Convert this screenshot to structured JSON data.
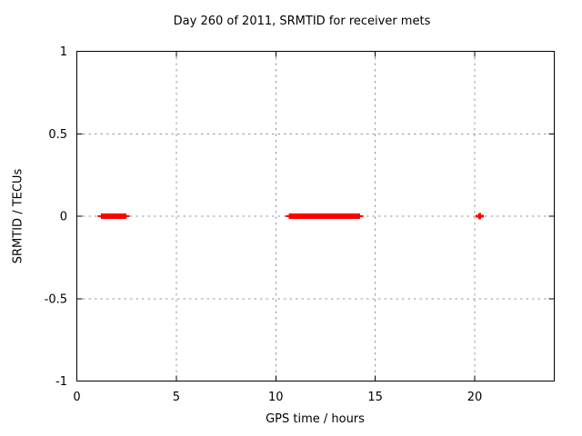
{
  "window": {
    "background": "#ffffff",
    "text_color": "#000000"
  },
  "chart_data": {
    "type": "scatter",
    "title": "Day 260 of 2011, SRMTID for receiver mets",
    "xlabel": "GPS time / hours",
    "ylabel": "SRMTID / TECUs",
    "xlim": [
      0,
      24
    ],
    "ylim": [
      -1,
      1
    ],
    "xtick_labels": [
      "0",
      "5",
      "10",
      "15",
      "20"
    ],
    "ytick_labels": [
      "1",
      "0.5",
      "0",
      "-0.5",
      "-1"
    ],
    "grid": true,
    "grid_style": "dotted",
    "grid_color": "#999999",
    "frame_color": "#000000",
    "legend_position": "none",
    "marker": "plus",
    "series": [
      {
        "name": "SRMTID",
        "color": "#ff0000",
        "y": 0,
        "clusters": [
          {
            "x_start": 1.2,
            "x_end": 2.5,
            "y": 0
          },
          {
            "x_start": 10.65,
            "x_end": 14.25,
            "y": 0
          }
        ],
        "isolated_points": [
          {
            "x": 20.25,
            "y": 0
          }
        ]
      }
    ]
  }
}
